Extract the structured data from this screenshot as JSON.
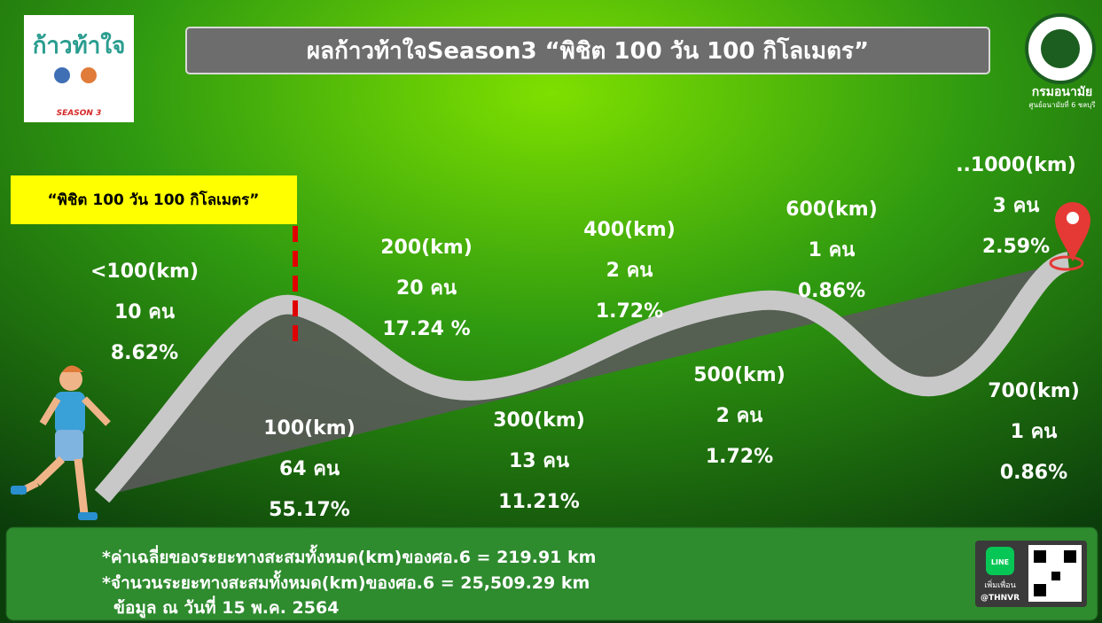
{
  "header": {
    "title": "ผลก้าวท้าใจSeason3 “พิชิต 100 วัน 100 กิโลเมตร”",
    "logo_left": {
      "title": "ก้าวท้าใจ",
      "season": "SEASON 3"
    },
    "logo_right": {
      "name": "กรมอนามัย",
      "unit": "ศูนย์อนามัยที่ 6 ชลบุรี"
    }
  },
  "goal_label": "“พิชิต 100 วัน 100 กิโลเมตร”",
  "milestones": [
    {
      "distance": "<100(km)",
      "people": "10 คน",
      "percent": "8.62%"
    },
    {
      "distance": "100(km)",
      "people": "64 คน",
      "percent": "55.17%"
    },
    {
      "distance": "200(km)",
      "people": "20 คน",
      "percent": "17.24 %"
    },
    {
      "distance": "300(km)",
      "people": "13 คน",
      "percent": "11.21%"
    },
    {
      "distance": "400(km)",
      "people": "2 คน",
      "percent": "1.72%"
    },
    {
      "distance": "500(km)",
      "people": "2 คน",
      "percent": "1.72%"
    },
    {
      "distance": "600(km)",
      "people": "1 คน",
      "percent": "0.86%"
    },
    {
      "distance": "700(km)",
      "people": "1 คน",
      "percent": "0.86%"
    },
    {
      "distance": "..1000(km)",
      "people": "3 คน",
      "percent": "2.59%"
    }
  ],
  "footer": {
    "lines": [
      "*ค่าเฉลี่ยของระยะทางสะสมทั้งหมด(km)ของศอ.6 = 219.91  km",
      "*จำนวนระยะทางสะสมทั้งหมด(km)ของศอ.6 = 25,509.29  km",
      "ข้อมูล ณ วันที่ 15 พ.ค. 2564"
    ],
    "line_badge": {
      "icon": "LINE",
      "add": "เพิ่มเพื่อน",
      "id": "@THNVR"
    }
  }
}
